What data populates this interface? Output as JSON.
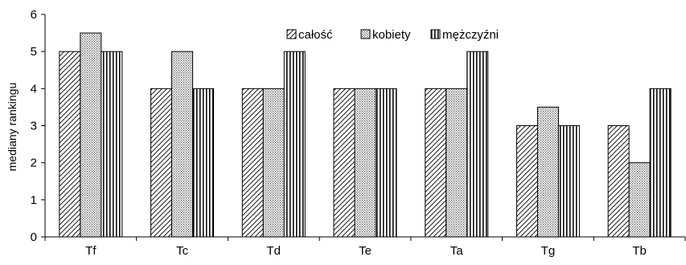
{
  "chart_data": {
    "type": "bar",
    "categories": [
      "Tf",
      "Tc",
      "Td",
      "Te",
      "Ta",
      "Tg",
      "Tb"
    ],
    "series": [
      {
        "name": "całość",
        "values": [
          5,
          4,
          4,
          4,
          4,
          3,
          3
        ],
        "pattern": "diagonal-hatch"
      },
      {
        "name": "kobiety",
        "values": [
          5.5,
          5,
          4,
          4,
          4,
          3.5,
          2
        ],
        "pattern": "dotted"
      },
      {
        "name": "mężczyźni",
        "values": [
          5,
          4,
          5,
          4,
          5,
          3,
          4
        ],
        "pattern": "vertical-lines"
      }
    ],
    "title": "",
    "xlabel": "",
    "ylabel": "mediany rankingu",
    "ylim": [
      0,
      6
    ],
    "yticks": [
      "0",
      "1",
      "2",
      "3",
      "4",
      "5",
      "6"
    ],
    "grid": false,
    "legend_position": "top-center"
  }
}
